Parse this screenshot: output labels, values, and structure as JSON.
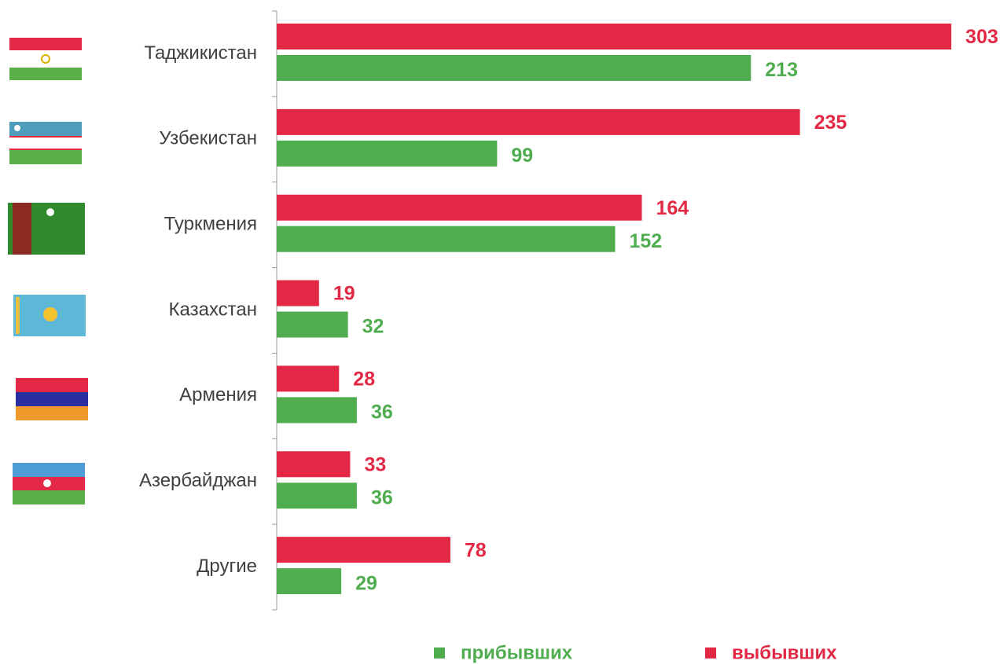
{
  "chart_data": {
    "type": "grouped-barh",
    "categories": [
      "Таджикистан",
      "Узбекистан",
      "Туркмения",
      "Казахстан",
      "Армения",
      "Азербайджан",
      "Другие"
    ],
    "series": [
      {
        "name": "прибывших",
        "color": "#4fad4f",
        "values": [
          213,
          99,
          152,
          32,
          36,
          36,
          29
        ]
      },
      {
        "name": "выбывших",
        "color": "#e32845",
        "values": [
          303,
          235,
          164,
          19,
          28,
          33,
          78
        ]
      }
    ],
    "xlim": [
      0,
      310
    ]
  }
}
